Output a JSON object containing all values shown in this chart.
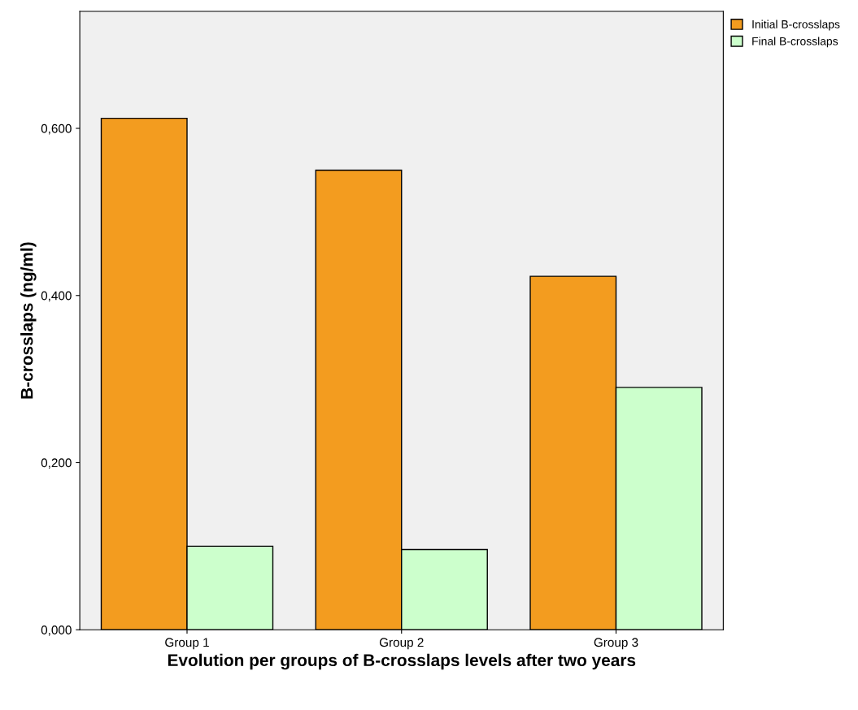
{
  "chart_data": {
    "type": "bar",
    "xlabel": "Evolution per groups of B-crosslaps levels after two years",
    "ylabel": "B-crosslaps (ng/ml)",
    "categories": [
      "Group 1",
      "Group 2",
      "Group 3"
    ],
    "series": [
      {
        "name": "Initial B-crosslaps",
        "color": "#f39c1f",
        "values": [
          0.612,
          0.55,
          0.423
        ]
      },
      {
        "name": "Final B-crosslaps",
        "color": "#ccffcc",
        "values": [
          0.1,
          0.096,
          0.29
        ]
      }
    ],
    "ylim": [
      0,
      0.74
    ],
    "yticks": [
      {
        "value": 0,
        "label": "0,000"
      },
      {
        "value": 0.2,
        "label": "0,200"
      },
      {
        "value": 0.4,
        "label": "0,400"
      },
      {
        "value": 0.6,
        "label": "0,600"
      }
    ],
    "grid": false,
    "legend": "top right"
  }
}
